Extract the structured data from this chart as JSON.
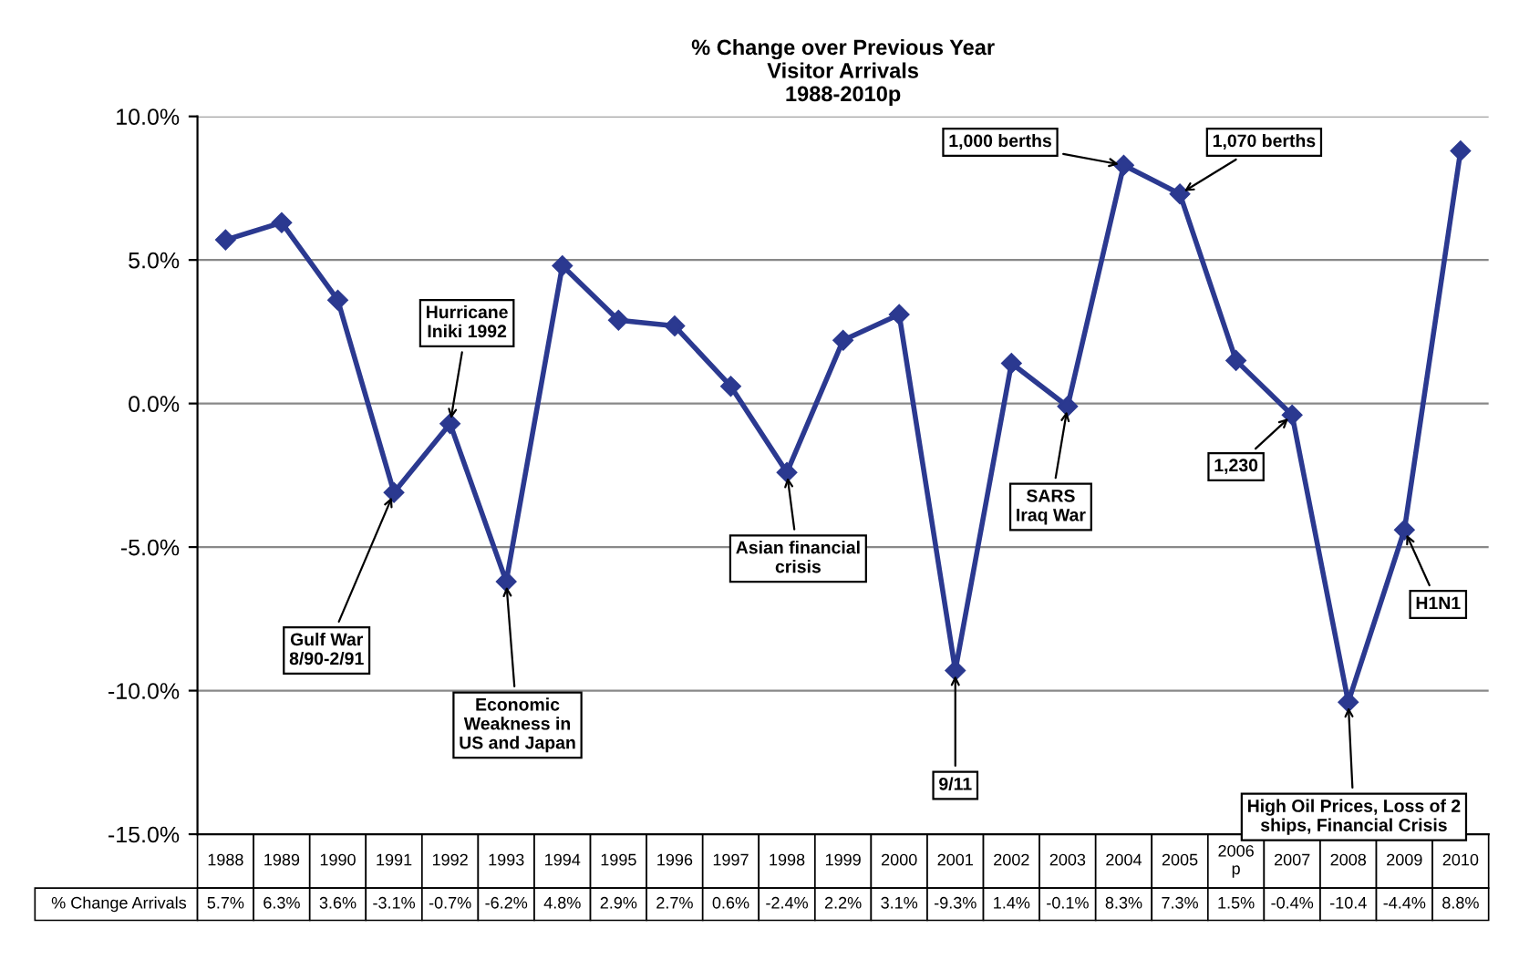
{
  "chart_data": {
    "type": "line",
    "title": "% Change over Previous Year\nVisitor Arrivals\n1988-2010p",
    "categories": [
      "1988",
      "1989",
      "1990",
      "1991",
      "1992",
      "1993",
      "1994",
      "1995",
      "1996",
      "1997",
      "1998",
      "1999",
      "2000",
      "2001",
      "2002",
      "2003",
      "2004",
      "2005",
      "2006\np",
      "2007",
      "2008",
      "2009",
      "2010"
    ],
    "series": [
      {
        "name": "% Change Arrivals",
        "color": "#2b3990",
        "values": [
          5.7,
          6.3,
          3.6,
          -3.1,
          -0.7,
          -6.2,
          4.8,
          2.9,
          2.7,
          0.6,
          -2.4,
          2.2,
          3.1,
          -9.3,
          1.4,
          -0.1,
          8.3,
          7.3,
          1.5,
          -0.4,
          -10.4,
          -4.4,
          8.8
        ],
        "value_labels": [
          "5.7%",
          "6.3%",
          "3.6%",
          "-3.1%",
          "-0.7%",
          "-6.2%",
          "4.8%",
          "2.9%",
          "2.7%",
          "0.6%",
          "-2.4%",
          "2.2%",
          "3.1%",
          "-9.3%",
          "1.4%",
          "-0.1%",
          "8.3%",
          "7.3%",
          "1.5%",
          "-0.4%",
          "-10.4",
          "-4.4%",
          "8.8%"
        ]
      }
    ],
    "ylim": [
      -15,
      10
    ],
    "yticks": [
      {
        "value": -15,
        "label": "-15.0%"
      },
      {
        "value": -10,
        "label": "-10.0%"
      },
      {
        "value": -5,
        "label": "-5.0%"
      },
      {
        "value": 0,
        "label": "0.0%"
      },
      {
        "value": 5,
        "label": "5.0%"
      },
      {
        "value": 10,
        "label": "10.0%"
      }
    ],
    "grid": "y",
    "marker": "diamond",
    "line_style": "solid",
    "legend": false,
    "annotations": [
      {
        "text": "Hurricane\nIniki 1992",
        "x": "1992",
        "y": -0.7
      },
      {
        "text": "Gulf War\n8/90-2/91",
        "x": "1991",
        "y": -3.1
      },
      {
        "text": "Economic\nWeakness in\nUS and Japan",
        "x": "1993",
        "y": -6.2
      },
      {
        "text": "Asian financial\ncrisis",
        "x": "1998",
        "y": -2.4
      },
      {
        "text": "9/11",
        "x": "2001",
        "y": -9.3
      },
      {
        "text": "SARS\nIraq War",
        "x": "2003",
        "y": -0.1
      },
      {
        "text": "1,000 berths",
        "x": "2004",
        "y": 8.3
      },
      {
        "text": "1,070 berths",
        "x": "2005",
        "y": 7.3
      },
      {
        "text": "1,230",
        "x": "2007",
        "y": -0.4
      },
      {
        "text": "High Oil Prices, Loss of 2\nships, Financial Crisis",
        "x": "2008",
        "y": -10.4
      },
      {
        "text": "H1N1",
        "x": "2009",
        "y": -4.4
      }
    ]
  }
}
